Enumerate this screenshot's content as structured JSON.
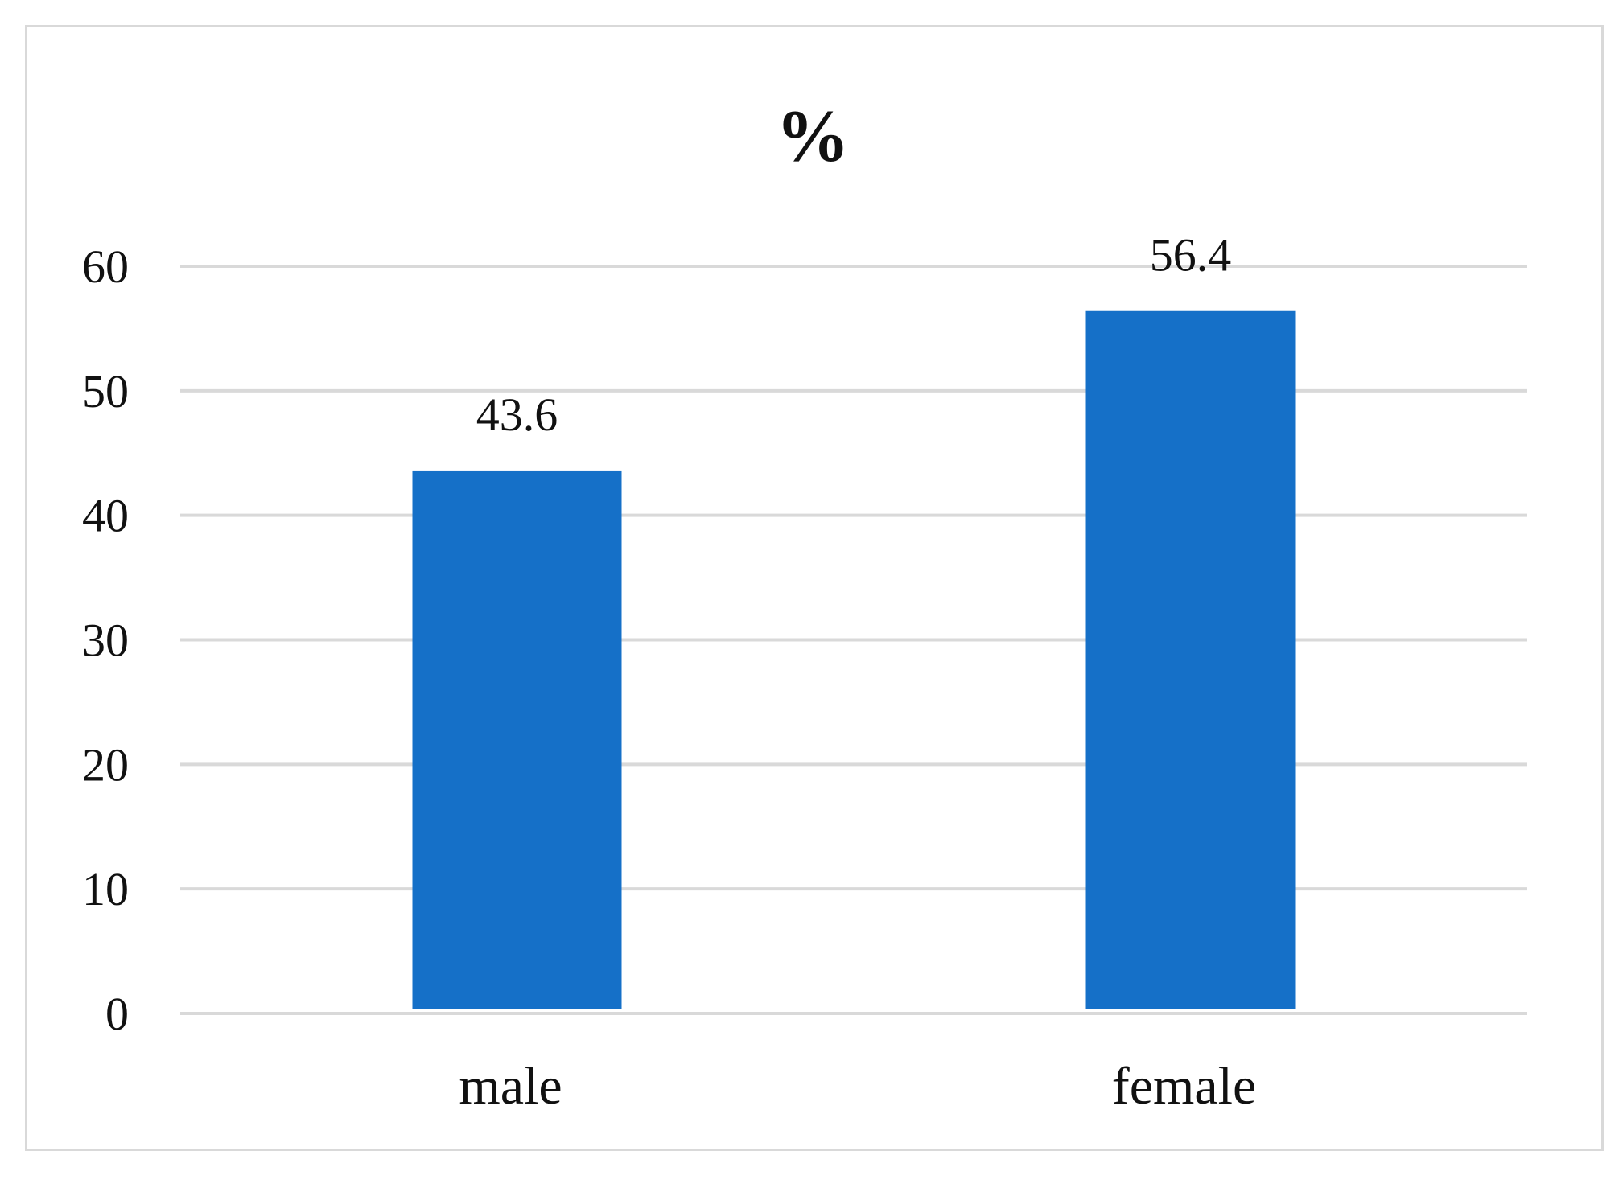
{
  "chart_data": {
    "type": "bar",
    "title": "%",
    "categories": [
      "male",
      "female"
    ],
    "values": [
      43.6,
      56.4
    ],
    "data_labels": [
      "43.6",
      "56.4"
    ],
    "xlabel": "",
    "ylabel": "",
    "ylim": [
      0,
      60
    ],
    "yticks": [
      "0",
      "10",
      "20",
      "30",
      "40",
      "50",
      "60"
    ],
    "grid": true,
    "legend": "none",
    "bar_color": "#1570c8",
    "grid_color": "#d9d9d9",
    "border_color": "#d9d9d9"
  }
}
